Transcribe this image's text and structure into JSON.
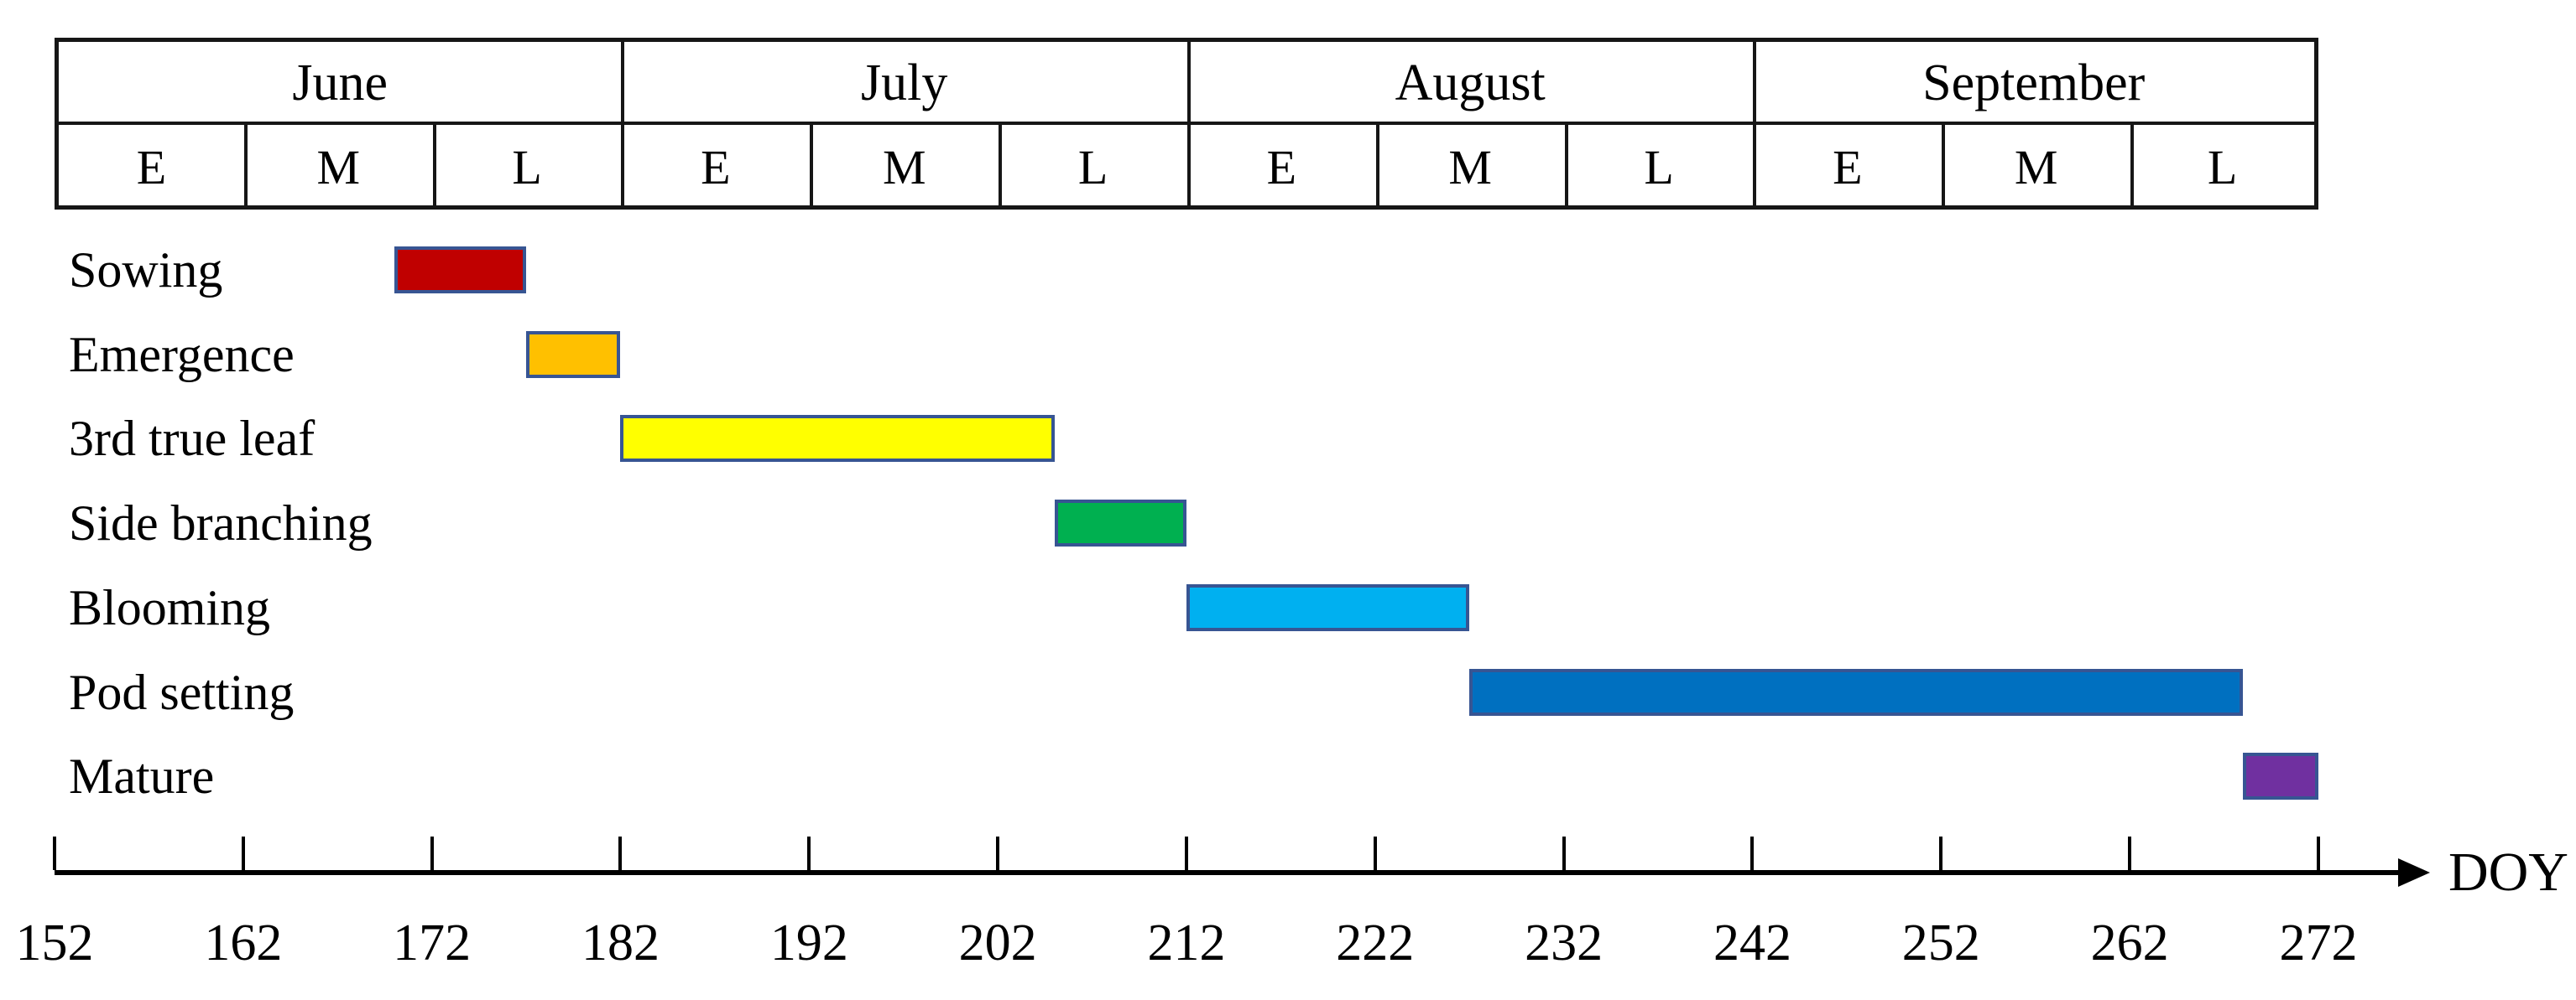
{
  "chart_data": {
    "type": "bar",
    "subtype": "gantt-crop-calendar",
    "title": "",
    "xlabel": "DOY",
    "ylabel": "",
    "xlim": [
      152,
      272
    ],
    "x_ticks": [
      152,
      162,
      172,
      182,
      192,
      202,
      212,
      222,
      232,
      242,
      252,
      262,
      272
    ],
    "grid": false,
    "legend": "none",
    "calendar_header": {
      "months": [
        {
          "name": "June",
          "periods": [
            "E",
            "M",
            "L"
          ]
        },
        {
          "name": "July",
          "periods": [
            "E",
            "M",
            "L"
          ]
        },
        {
          "name": "August",
          "periods": [
            "E",
            "M",
            "L"
          ]
        },
        {
          "name": "September",
          "periods": [
            "E",
            "M",
            "L"
          ]
        }
      ],
      "days_per_period": 10
    },
    "categories": [
      "Sowing",
      "Emergence",
      "3rd true leaf",
      "Side branching",
      "Blooming",
      "Pod setting",
      "Mature"
    ],
    "stages": [
      {
        "label": "Sowing",
        "start_doy": 170,
        "end_doy": 177,
        "color": "#C00000"
      },
      {
        "label": "Emergence",
        "start_doy": 177,
        "end_doy": 182,
        "color": "#FFC000"
      },
      {
        "label": "3rd true leaf",
        "start_doy": 182,
        "end_doy": 205,
        "color": "#FFFF00"
      },
      {
        "label": "Side branching",
        "start_doy": 205,
        "end_doy": 212,
        "color": "#00B050"
      },
      {
        "label": "Blooming",
        "start_doy": 212,
        "end_doy": 227,
        "color": "#00B0F0"
      },
      {
        "label": "Pod setting",
        "start_doy": 227,
        "end_doy": 268,
        "color": "#0070C0"
      },
      {
        "label": "Mature",
        "start_doy": 268,
        "end_doy": 272,
        "color": "#7030A0"
      }
    ],
    "bar_border_color": "#375593",
    "axis_color": "#000000"
  }
}
